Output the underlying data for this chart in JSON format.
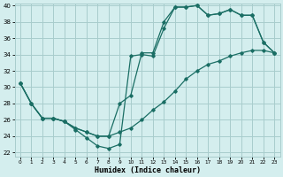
{
  "title": "",
  "xlabel": "Humidex (Indice chaleur)",
  "bg_color": "#d4eeee",
  "grid_color": "#a8cccc",
  "line_color": "#1a6e64",
  "xlim": [
    -0.5,
    23.5
  ],
  "ylim": [
    21.5,
    40.2
  ],
  "xticks": [
    0,
    1,
    2,
    3,
    4,
    5,
    6,
    7,
    8,
    9,
    10,
    11,
    12,
    13,
    14,
    15,
    16,
    17,
    18,
    19,
    20,
    21,
    22,
    23
  ],
  "yticks": [
    22,
    24,
    26,
    28,
    30,
    32,
    34,
    36,
    38,
    40
  ],
  "line1_x": [
    0,
    1,
    2,
    3,
    4,
    5,
    6,
    7,
    8,
    9,
    10,
    11,
    12,
    13,
    14,
    15,
    16,
    17,
    18,
    19,
    20,
    21,
    22,
    23
  ],
  "line1_y": [
    30.5,
    28,
    26.2,
    26.2,
    25.8,
    25.0,
    24.5,
    24.0,
    24.0,
    28.0,
    29.0,
    34.2,
    34.2,
    38.0,
    39.8,
    39.8,
    40.0,
    38.8,
    39.0,
    39.5,
    38.8,
    38.8,
    35.5,
    34.2
  ],
  "line2_x": [
    0,
    1,
    2,
    3,
    4,
    5,
    6,
    7,
    8,
    9,
    10,
    11,
    12,
    13,
    14,
    15,
    16,
    17,
    18,
    19,
    20,
    21,
    22,
    23
  ],
  "line2_y": [
    30.5,
    28,
    26.2,
    26.2,
    25.8,
    24.8,
    23.8,
    22.8,
    22.5,
    23.0,
    33.8,
    34.0,
    33.8,
    37.2,
    39.8,
    39.8,
    40.0,
    38.8,
    39.0,
    39.5,
    38.8,
    38.8,
    35.5,
    34.2
  ],
  "line3_x": [
    0,
    1,
    2,
    3,
    4,
    5,
    6,
    7,
    8,
    9,
    10,
    11,
    12,
    13,
    14,
    15,
    16,
    17,
    18,
    19,
    20,
    21,
    22,
    23
  ],
  "line3_y": [
    30.5,
    28,
    26.2,
    26.2,
    25.8,
    25.0,
    24.5,
    24.0,
    24.0,
    24.5,
    25.0,
    26.0,
    27.2,
    28.2,
    29.5,
    31.0,
    32.0,
    32.8,
    33.2,
    33.8,
    34.2,
    34.5,
    34.5,
    34.2
  ]
}
